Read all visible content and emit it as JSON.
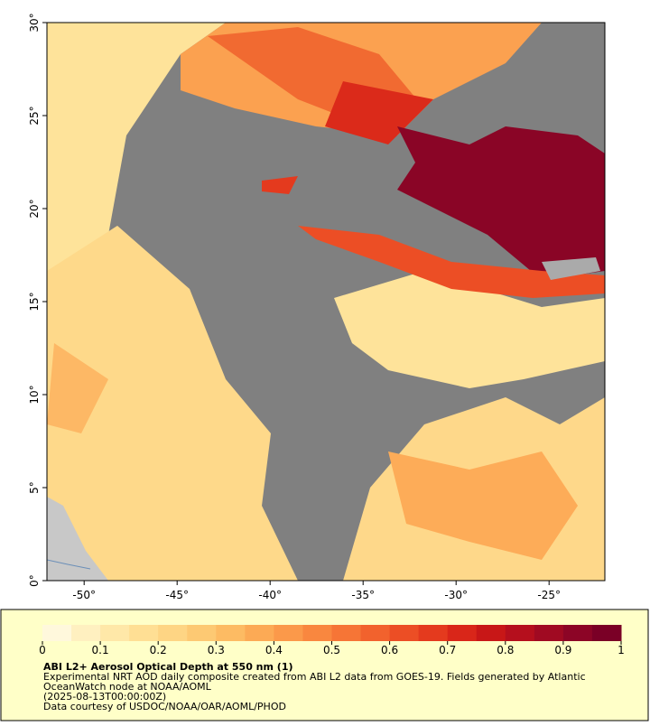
{
  "map": {
    "xlim": [
      -52,
      -22
    ],
    "ylim": [
      0,
      30
    ],
    "xticks": [
      {
        "value": -50,
        "label": "-50°"
      },
      {
        "value": -45,
        "label": "-45°"
      },
      {
        "value": -40,
        "label": "-40°"
      },
      {
        "value": -35,
        "label": "-35°"
      },
      {
        "value": -30,
        "label": "-30°"
      },
      {
        "value": -25,
        "label": "-25°"
      }
    ],
    "yticks": [
      {
        "value": 0,
        "label": "0°"
      },
      {
        "value": 5,
        "label": "5°"
      },
      {
        "value": 10,
        "label": "10°"
      },
      {
        "value": 15,
        "label": "15°"
      },
      {
        "value": 20,
        "label": "20°"
      },
      {
        "value": 25,
        "label": "25°"
      },
      {
        "value": 30,
        "label": "30°"
      }
    ]
  },
  "colorbar": {
    "lim": [
      0,
      1
    ],
    "ticks": [
      0,
      0.1,
      0.2,
      0.3,
      0.4,
      0.5,
      0.6,
      0.7,
      0.8,
      0.9,
      1
    ],
    "colors": [
      "#fff8dc",
      "#fff0c0",
      "#ffe8a8",
      "#ffdf94",
      "#fed584",
      "#fdc973",
      "#fdbb63",
      "#fcaa55",
      "#fb994a",
      "#f9873f",
      "#f67536",
      "#f2622d",
      "#ec4e25",
      "#e43a1e",
      "#d92619",
      "#c81717",
      "#b50f1d",
      "#a00a22",
      "#8c0526",
      "#7a0026"
    ]
  },
  "caption": {
    "title": "ABI L2+ Aerosol Optical Depth at 550 nm (1)",
    "lines": [
      "Experimental NRT AOD daily composite created from ABI L2 data from GOES-19. Fields generated by Atlantic",
      "OceanWatch node at NOAA/AOML",
      "(2025-08-13T00:00:00Z)",
      "Data courtesy of USDOC/NOAA/OAR/AOML/PHOD"
    ]
  }
}
